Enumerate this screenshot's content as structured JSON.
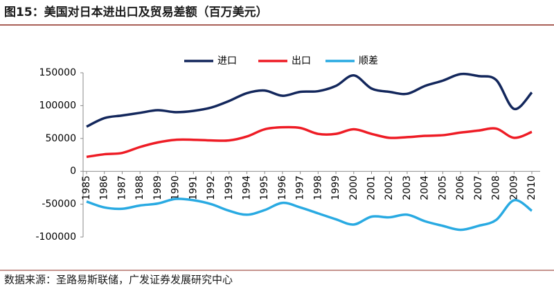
{
  "chart_data": {
    "type": "line",
    "title": "图15：美国对日本进出口及贸易差额（百万美元）",
    "source": "数据来源：圣路易斯联储，广发证券发展研究中心",
    "categories": [
      "1985",
      "1986",
      "1987",
      "1988",
      "1989",
      "1990",
      "1991",
      "1992",
      "1993",
      "1994",
      "1995",
      "1996",
      "1997",
      "1998",
      "1999",
      "2000",
      "2001",
      "2002",
      "2003",
      "2004",
      "2005",
      "2006",
      "2007",
      "2008",
      "2009",
      "2010"
    ],
    "series": [
      {
        "name": "进口",
        "color": "#13275c",
        "values": [
          68000,
          81000,
          85000,
          89000,
          93000,
          90000,
          92000,
          97000,
          107000,
          119000,
          123000,
          115000,
          121000,
          122000,
          130000,
          146000,
          126000,
          121000,
          118000,
          130000,
          138000,
          148000,
          145000,
          139000,
          95000,
          120000
        ]
      },
      {
        "name": "出口",
        "color": "#ee1c25",
        "values": [
          22000,
          26000,
          28000,
          37000,
          44000,
          48000,
          48000,
          47000,
          47000,
          53000,
          64000,
          67000,
          66000,
          57000,
          57000,
          64000,
          57000,
          51000,
          52000,
          54000,
          55000,
          59000,
          62000,
          65000,
          51000,
          60000
        ]
      },
      {
        "name": "顺差",
        "color": "#29aae2",
        "values": [
          -46000,
          -55000,
          -57000,
          -52000,
          -49000,
          -42000,
          -44000,
          -50000,
          -60000,
          -66000,
          -59000,
          -48000,
          -55000,
          -64000,
          -73000,
          -81000,
          -69000,
          -70000,
          -66000,
          -76000,
          -83000,
          -89000,
          -83000,
          -74000,
          -44000,
          -60000
        ]
      }
    ],
    "ylim": [
      -100000,
      150000
    ],
    "yticks": [
      -100000,
      -50000,
      0,
      50000,
      100000,
      150000
    ],
    "legend": "top"
  }
}
